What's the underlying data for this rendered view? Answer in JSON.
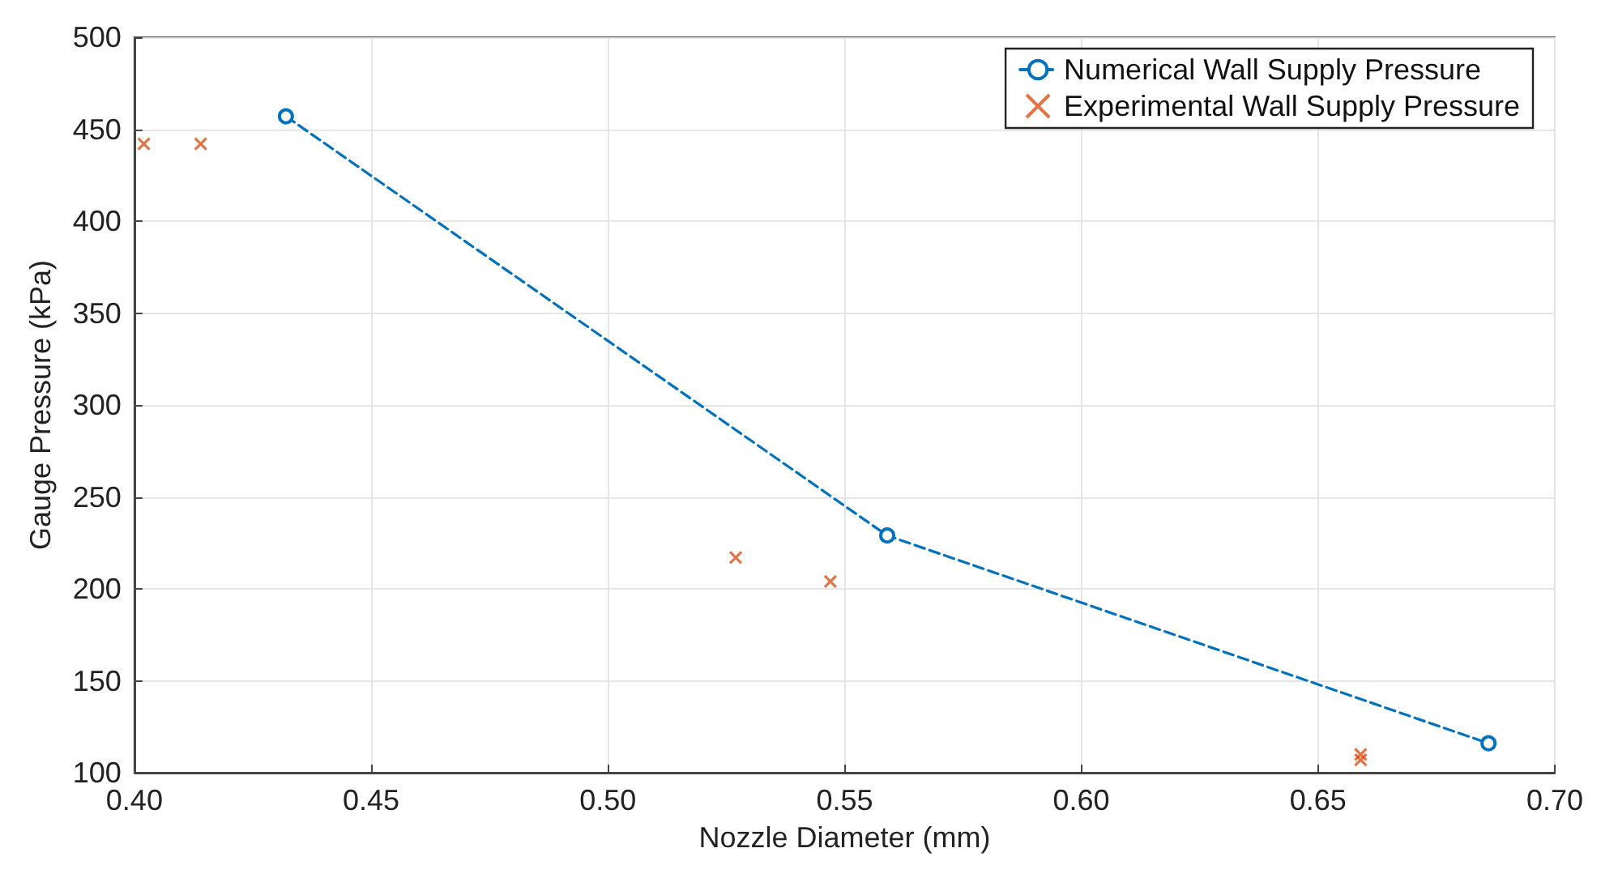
{
  "chart_data": {
    "type": "line",
    "xlabel": "Nozzle Diameter (mm)",
    "ylabel": "Gauge Pressure (kPa)",
    "xlim": [
      0.4,
      0.7
    ],
    "xticks": [
      {
        "value": 0.4,
        "label": "0.40"
      },
      0.45,
      {
        "value": 0.5,
        "label": "0.50"
      },
      0.55,
      {
        "value": 0.6,
        "label": "0.60"
      },
      0.65,
      {
        "value": 0.7,
        "label": "0.70"
      }
    ],
    "ylim": [
      100,
      500
    ],
    "yticks": [
      100,
      150,
      200,
      250,
      300,
      350,
      400,
      450,
      500
    ],
    "grid": true,
    "legend": "top right",
    "series": [
      {
        "name": "Numerical Wall Supply Pressure",
        "color": "#0072bd",
        "marker": "circle",
        "line_style": "dashed",
        "x": [
          0.432,
          0.559,
          0.686
        ],
        "values": [
          457,
          229,
          116
        ]
      },
      {
        "name": "Experimental Wall Supply Pressure",
        "type": "scatter",
        "color": "#d95319",
        "marker": "cross",
        "x": [
          0.402,
          0.414,
          0.527,
          0.547,
          0.659,
          0.659
        ],
        "values": [
          442,
          442,
          217,
          204,
          110,
          107
        ]
      }
    ]
  }
}
